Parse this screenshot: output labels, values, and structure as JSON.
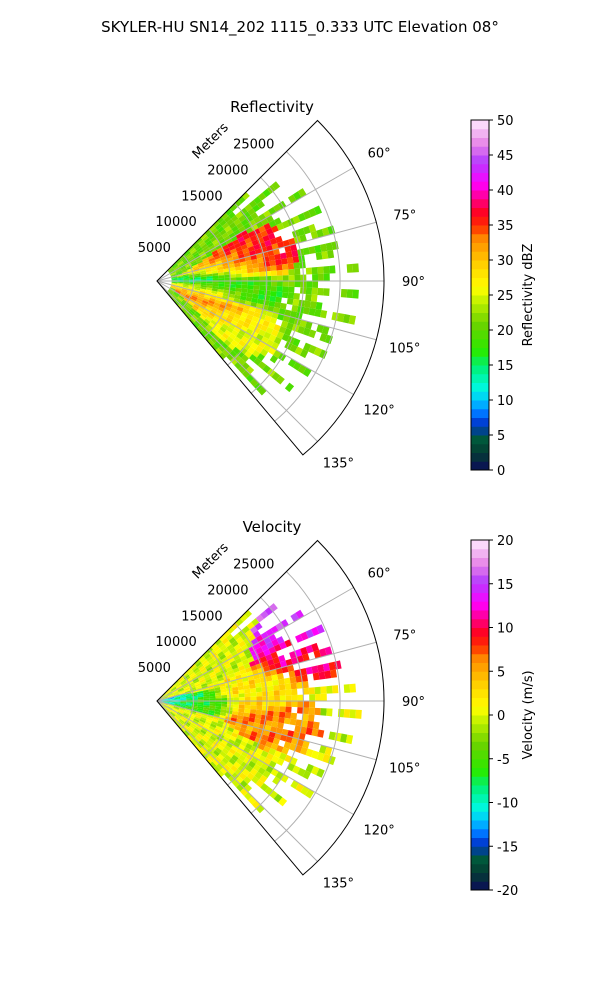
{
  "figure": {
    "title": "SKYLER-HU  SN14_202  1115_0.333 UTC Elevation 08°"
  },
  "chart_data": [
    {
      "type": "heatmap",
      "projection": "polar-sector",
      "title": "Reflectivity",
      "radial_axis_label": "Meters",
      "radial_range": [
        0,
        31000
      ],
      "radial_ticks": [
        "5000",
        "10000",
        "15000",
        "20000",
        "25000"
      ],
      "radial_tick_values": [
        5000,
        10000,
        15000,
        20000,
        25000
      ],
      "angle_range_deg": [
        45,
        140
      ],
      "angle_ticks": [
        "60°",
        "75°",
        "90°",
        "105°",
        "120°",
        "135°"
      ],
      "angle_tick_values": [
        60,
        75,
        90,
        105,
        120,
        135
      ],
      "grid": true,
      "colorbar": {
        "label": "Reflectivity dBZ",
        "range": [
          0,
          50
        ],
        "ticks": [
          "0",
          "5",
          "10",
          "15",
          "20",
          "25",
          "30",
          "35",
          "40",
          "45",
          "50"
        ],
        "tick_values": [
          0,
          5,
          10,
          15,
          20,
          25,
          30,
          35,
          40,
          45,
          50
        ]
      },
      "data_range_min_m": 2000,
      "features": [
        {
          "angle_deg": 75,
          "range_m": 13000,
          "value": 36
        },
        {
          "angle_deg": 80,
          "range_m": 10000,
          "value": 28
        },
        {
          "angle_deg": 90,
          "range_m": 7000,
          "value": 14
        },
        {
          "angle_deg": 96,
          "range_m": 11000,
          "value": 18
        },
        {
          "angle_deg": 100,
          "range_m": 7000,
          "value": 27
        },
        {
          "angle_deg": 113,
          "range_m": 9500,
          "value": 33
        },
        {
          "angle_deg": 118,
          "range_m": 12000,
          "value": 25
        }
      ]
    },
    {
      "type": "heatmap",
      "projection": "polar-sector",
      "title": "Velocity",
      "radial_axis_label": "Meters",
      "radial_range": [
        0,
        31000
      ],
      "radial_ticks": [
        "5000",
        "10000",
        "15000",
        "20000",
        "25000"
      ],
      "radial_tick_values": [
        5000,
        10000,
        15000,
        20000,
        25000
      ],
      "angle_range_deg": [
        45,
        140
      ],
      "angle_ticks": [
        "60°",
        "75°",
        "90°",
        "105°",
        "120°",
        "135°"
      ],
      "angle_tick_values": [
        60,
        75,
        90,
        105,
        120,
        135
      ],
      "grid": true,
      "colorbar": {
        "label": "Velocity (m/s)",
        "range": [
          -20,
          20
        ],
        "ticks": [
          "-20",
          "-15",
          "-10",
          "-5",
          "0",
          "5",
          "10",
          "15",
          "20"
        ],
        "tick_values": [
          -20,
          -15,
          -10,
          -5,
          0,
          5,
          10,
          15,
          20
        ]
      },
      "data_range_min_m": 0,
      "features": [
        {
          "angle_deg": 90,
          "range_m": 1500,
          "value": -12
        },
        {
          "angle_deg": 92,
          "range_m": 5000,
          "value": -5
        },
        {
          "angle_deg": 85,
          "range_m": 14000,
          "value": 2
        },
        {
          "angle_deg": 100,
          "range_m": 16000,
          "value": 6
        },
        {
          "angle_deg": 70,
          "range_m": 21000,
          "value": 10
        },
        {
          "angle_deg": 62,
          "range_m": 22000,
          "value": 15
        }
      ]
    }
  ]
}
